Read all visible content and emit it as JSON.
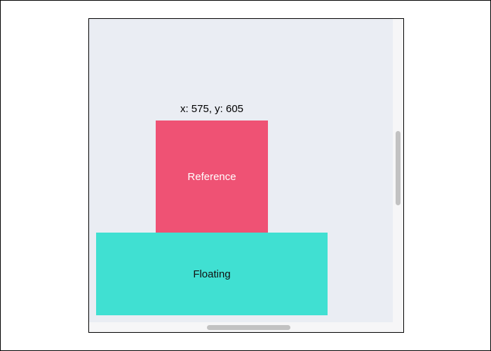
{
  "coordinates": {
    "text": "x: 575, y: 605"
  },
  "reference": {
    "label": "Reference"
  },
  "floating": {
    "label": "Floating"
  },
  "scroll": {
    "vertical_position": 0.48,
    "horizontal_position": 0.5
  },
  "colors": {
    "reference": "#ef5274",
    "floating": "#40e0d2",
    "viewport_background": "#eaedf3"
  }
}
